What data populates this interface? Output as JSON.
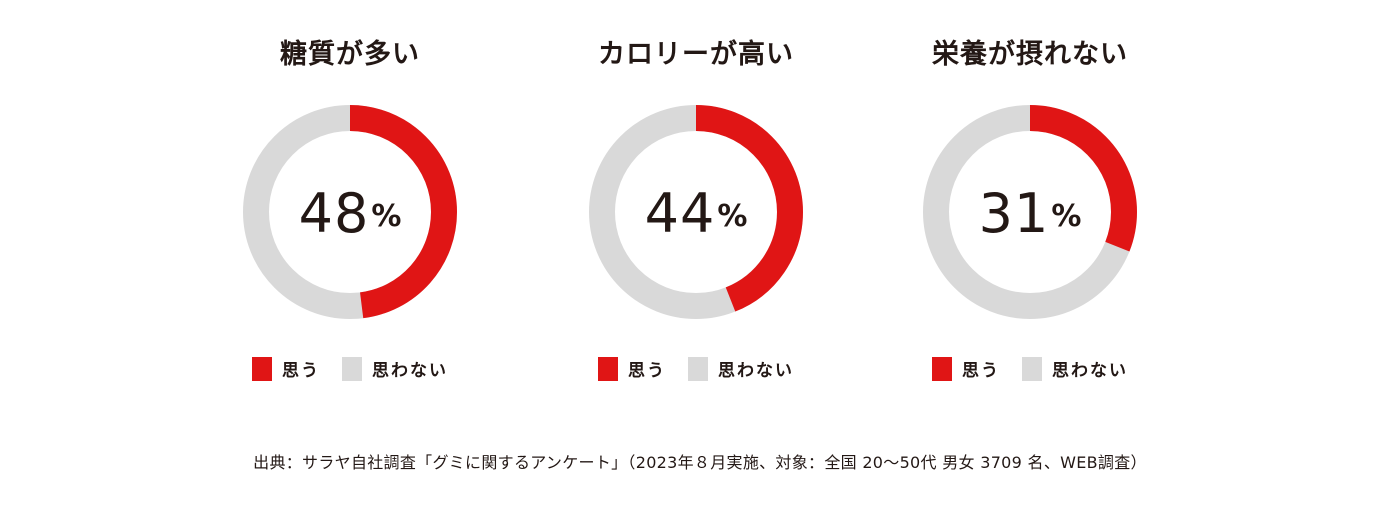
{
  "colors": {
    "agree": "#e01515",
    "disagree": "#d9d9d9",
    "text": "#231815"
  },
  "legend": {
    "agree_label": "思う",
    "disagree_label": "思わない"
  },
  "unit": "%",
  "chart_data": [
    {
      "type": "pie",
      "title": "糖質が多い",
      "series": [
        {
          "name": "思う",
          "value": 48
        },
        {
          "name": "思わない",
          "value": 52
        }
      ],
      "center_label": "48"
    },
    {
      "type": "pie",
      "title": "カロリーが高い",
      "series": [
        {
          "name": "思う",
          "value": 44
        },
        {
          "name": "思わない",
          "value": 56
        }
      ],
      "center_label": "44"
    },
    {
      "type": "pie",
      "title": "栄養が摂れない",
      "series": [
        {
          "name": "思う",
          "value": 31
        },
        {
          "name": "思わない",
          "value": 69
        }
      ],
      "center_label": "31"
    }
  ],
  "source": "出典：サラヤ自社調査「グミに関するアンケート」（2023年８月実施、対象：全国 20～50代 男女 3709 名、WEB調査）"
}
